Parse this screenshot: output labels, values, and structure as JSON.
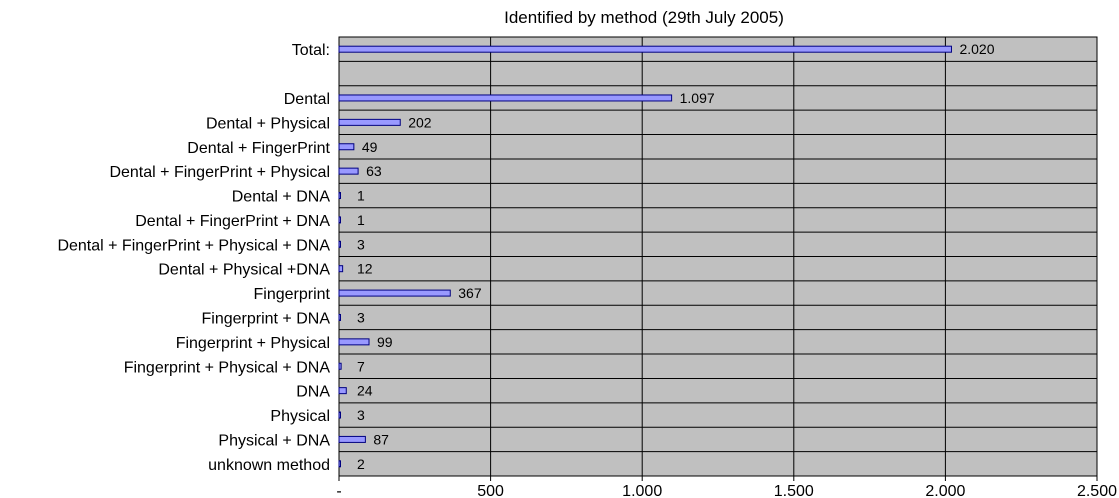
{
  "chart_data": {
    "type": "bar",
    "orientation": "horizontal",
    "title": "Identified by method (29th July 2005)",
    "xlabel": "",
    "ylabel": "",
    "xlim": [
      0,
      2500
    ],
    "xticks": [
      0,
      500,
      1000,
      1500,
      2000,
      2500
    ],
    "xtick_labels": [
      "-",
      "500",
      "1.000",
      "1.500",
      "2.000",
      "2.500"
    ],
    "grid": true,
    "legend": "none",
    "colors": {
      "plot_bg": "#c0c0c0",
      "bar_fill": "#9999ff",
      "bar_stroke": "#000080",
      "grid": "#000000"
    },
    "categories": [
      "Total:",
      "",
      "Dental",
      "Dental + Physical",
      "Dental + FingerPrint",
      "Dental + FingerPrint + Physical",
      "Dental + DNA",
      "Dental + FingerPrint + DNA",
      "Dental + FingerPrint + Physical + DNA",
      "Dental + Physical +DNA",
      "Fingerprint",
      "Fingerprint + DNA",
      "Fingerprint + Physical",
      "Fingerprint + Physical + DNA",
      "DNA",
      "Physical",
      "Physical + DNA",
      "unknown method"
    ],
    "values": [
      2020,
      null,
      1097,
      202,
      49,
      63,
      1,
      1,
      3,
      12,
      367,
      3,
      99,
      7,
      24,
      3,
      87,
      2
    ],
    "data_labels": [
      "2.020",
      "",
      "1.097",
      "202",
      "49",
      "63",
      "1",
      "1",
      "3",
      "12",
      "367",
      "3",
      "99",
      "7",
      "24",
      "3",
      "87",
      "2"
    ]
  }
}
